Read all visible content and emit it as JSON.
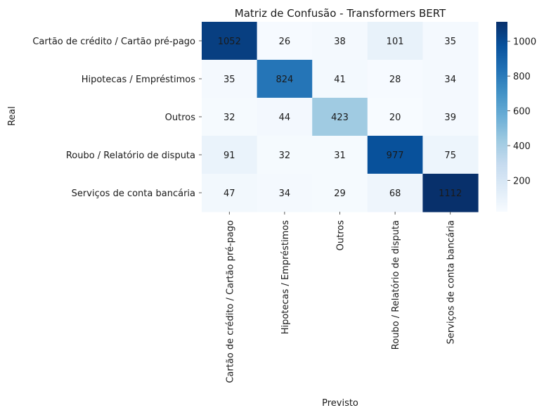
{
  "chart_data": {
    "type": "heatmap",
    "title": "Matriz de Confusão - Transformers BERT",
    "xlabel": "Previsto",
    "ylabel": "Real",
    "categories": [
      "Cartão de crédito / Cartão pré-pago",
      "Hipotecas / Empréstimos",
      "Outros",
      "Roubo / Relatório de disputa",
      "Serviços de conta bancária"
    ],
    "matrix": [
      [
        1052,
        26,
        38,
        101,
        35
      ],
      [
        35,
        824,
        41,
        28,
        34
      ],
      [
        32,
        44,
        423,
        20,
        39
      ],
      [
        91,
        32,
        31,
        977,
        75
      ],
      [
        47,
        34,
        29,
        68,
        1112
      ]
    ],
    "colorbar": {
      "colormap": "Blues",
      "range": [
        20,
        1112
      ],
      "ticks": [
        200,
        400,
        600,
        800,
        1000
      ]
    },
    "colors": {
      "blues_stops": [
        "#f7fbff",
        "#deebf7",
        "#c6dbef",
        "#9ecae1",
        "#6baed6",
        "#4292c6",
        "#2171b5",
        "#08519c",
        "#08306b"
      ]
    }
  }
}
